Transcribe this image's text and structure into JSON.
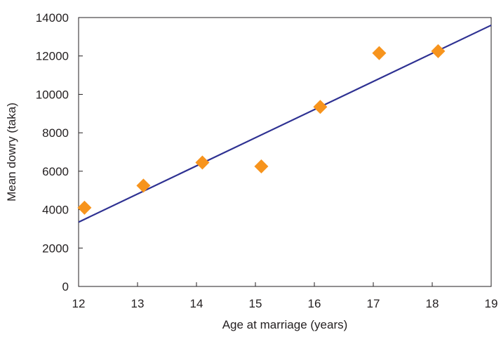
{
  "chart_data": {
    "type": "scatter",
    "xlabel": "Age at marriage (years)",
    "ylabel": "Mean dowry (taka)",
    "xlim": [
      12,
      19
    ],
    "ylim": [
      0,
      14000
    ],
    "x_ticks": [
      12,
      13,
      14,
      15,
      16,
      17,
      18,
      19
    ],
    "y_ticks": [
      0,
      2000,
      4000,
      6000,
      8000,
      10000,
      12000,
      14000
    ],
    "grid": false,
    "series": [
      {
        "type": "scatter",
        "marker": "diamond",
        "color": "#f7941d",
        "points": [
          {
            "x": 12.1,
            "y": 4100
          },
          {
            "x": 13.1,
            "y": 5250
          },
          {
            "x": 14.1,
            "y": 6450
          },
          {
            "x": 15.1,
            "y": 6250
          },
          {
            "x": 16.1,
            "y": 9350
          },
          {
            "x": 17.1,
            "y": 12150
          },
          {
            "x": 18.1,
            "y": 12250
          }
        ]
      },
      {
        "type": "line",
        "color": "#2e3192",
        "points": [
          {
            "x": 12.0,
            "y": 3350
          },
          {
            "x": 19.0,
            "y": 13600
          }
        ]
      }
    ]
  }
}
